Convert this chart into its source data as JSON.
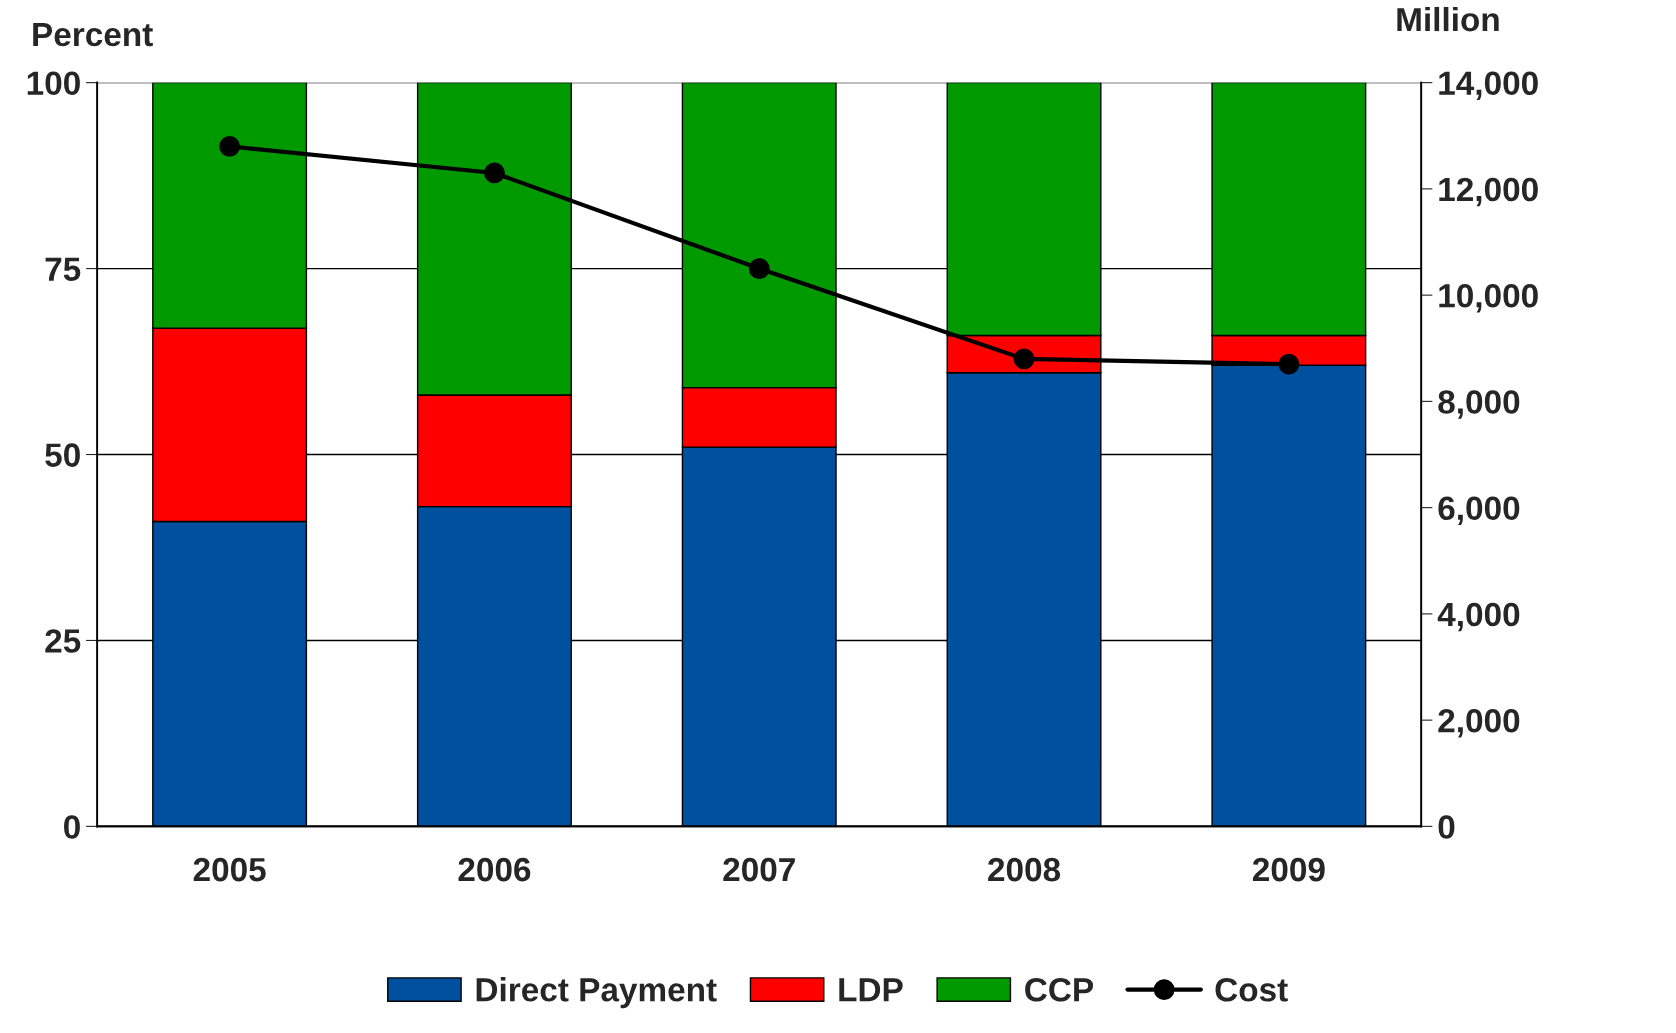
{
  "chart_data": {
    "type": "bar",
    "stacked": true,
    "ylabel": "Percent",
    "y2label": "Million",
    "categories": [
      "2005",
      "2006",
      "2007",
      "2008",
      "2009"
    ],
    "series": [
      {
        "name": "Direct Payment",
        "color": "#0050a0",
        "values": [
          41,
          43,
          51,
          61,
          62
        ]
      },
      {
        "name": "LDP",
        "color": "#ff0000",
        "values": [
          26,
          15,
          8,
          5,
          4
        ]
      },
      {
        "name": "CCP",
        "color": "#009900",
        "values": [
          33,
          42,
          41,
          34,
          34
        ]
      },
      {
        "name": "Cost",
        "type": "line",
        "axis": "y2",
        "color": "#000000",
        "marker": "circle",
        "values": [
          12800,
          12300,
          10500,
          8800,
          8700
        ]
      }
    ],
    "ylim": [
      0,
      100
    ],
    "yticks": [
      0,
      25,
      50,
      75,
      100
    ],
    "y2lim": [
      0,
      14000
    ],
    "y2ticks": [
      {
        "value": 0,
        "label": "0"
      },
      {
        "value": 2000,
        "label": "2,000"
      },
      {
        "value": 4000,
        "label": "4,000"
      },
      {
        "value": 6000,
        "label": "6,000"
      },
      {
        "value": 8000,
        "label": "8,000"
      },
      {
        "value": 10000,
        "label": "10,000"
      },
      {
        "value": 12000,
        "label": "12,000"
      },
      {
        "value": 14000,
        "label": "14,000"
      }
    ],
    "grid": "y",
    "legend": "bottom"
  }
}
